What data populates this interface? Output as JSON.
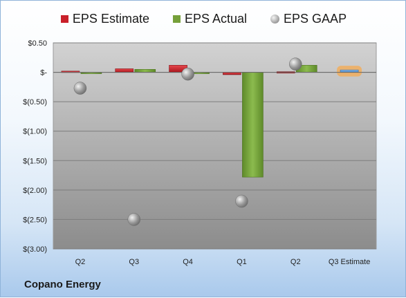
{
  "company": "Copano Energy",
  "legend": {
    "estimate": "EPS Estimate",
    "actual": "EPS Actual",
    "gaap": "EPS GAAP"
  },
  "colors": {
    "estimate": "#c9202a",
    "actual": "#76a03a",
    "gaap": "#a8a8a8",
    "next_estimate": "#5b9bd5",
    "next_estimate_glow": "#f6a94f"
  },
  "chart_data": {
    "type": "bar",
    "categories": [
      "Q2",
      "Q3",
      "Q4",
      "Q1",
      "Q2",
      "Q3 Estimate"
    ],
    "series": [
      {
        "name": "EPS Estimate",
        "values": [
          0.02,
          0.06,
          0.12,
          -0.04,
          0.01,
          0.04
        ]
      },
      {
        "name": "EPS Actual",
        "values": [
          0.0,
          0.05,
          -0.02,
          -1.78,
          0.12,
          null
        ]
      },
      {
        "name": "EPS GAAP",
        "values": [
          -0.27,
          -2.5,
          -0.03,
          -2.19,
          0.14,
          null
        ]
      }
    ],
    "yticks": [
      "$0.50",
      "$-",
      "$(0.50)",
      "$(1.00)",
      "$(1.50)",
      "$(2.00)",
      "$(2.50)",
      "$(3.00)"
    ],
    "ylim": [
      -3.0,
      0.5
    ],
    "grid": true,
    "legend_position": "top"
  }
}
